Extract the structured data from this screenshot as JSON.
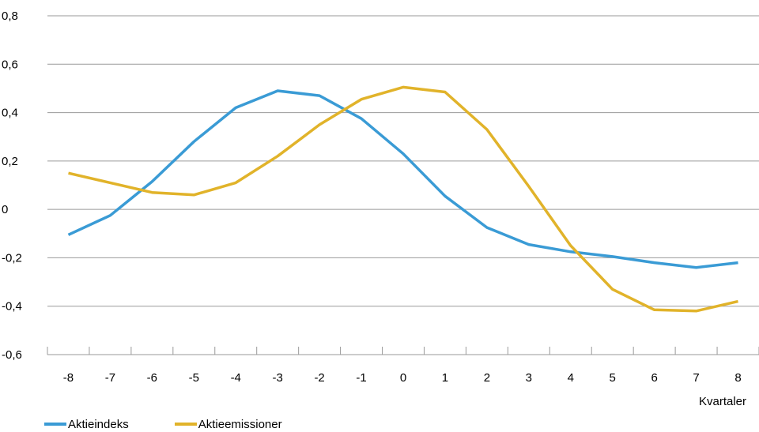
{
  "chart_data": {
    "type": "line",
    "title": "",
    "xlabel": "Kvartaler",
    "ylabel": "",
    "x": [
      -8,
      -7,
      -6,
      -5,
      -4,
      -3,
      -2,
      -1,
      0,
      1,
      2,
      3,
      4,
      5,
      6,
      7,
      8
    ],
    "x_tick_labels": [
      "-8",
      "-7",
      "-6",
      "-5",
      "-4",
      "-3",
      "-2",
      "-1",
      "0",
      "1",
      "2",
      "3",
      "4",
      "5",
      "6",
      "7",
      "8"
    ],
    "y_tick_labels": [
      "0,8",
      "0,6",
      "0,4",
      "0,2",
      "0",
      "-0,2",
      "-0,4",
      "-0,6"
    ],
    "ylim": [
      -0.6,
      0.8
    ],
    "grid": true,
    "legend_position": "bottom-left",
    "series": [
      {
        "name": "Aktieindeks",
        "color": "#3a9bd5",
        "values": [
          -0.105,
          -0.025,
          0.115,
          0.28,
          0.42,
          0.49,
          0.47,
          0.375,
          0.23,
          0.055,
          -0.075,
          -0.145,
          -0.175,
          -0.195,
          -0.22,
          -0.24,
          -0.22
        ]
      },
      {
        "name": "Aktieemissioner",
        "color": "#e1b32a",
        "values": [
          0.15,
          0.11,
          0.07,
          0.06,
          0.11,
          0.22,
          0.35,
          0.455,
          0.505,
          0.485,
          0.33,
          0.095,
          -0.15,
          -0.33,
          -0.415,
          -0.42,
          -0.38
        ]
      }
    ]
  }
}
